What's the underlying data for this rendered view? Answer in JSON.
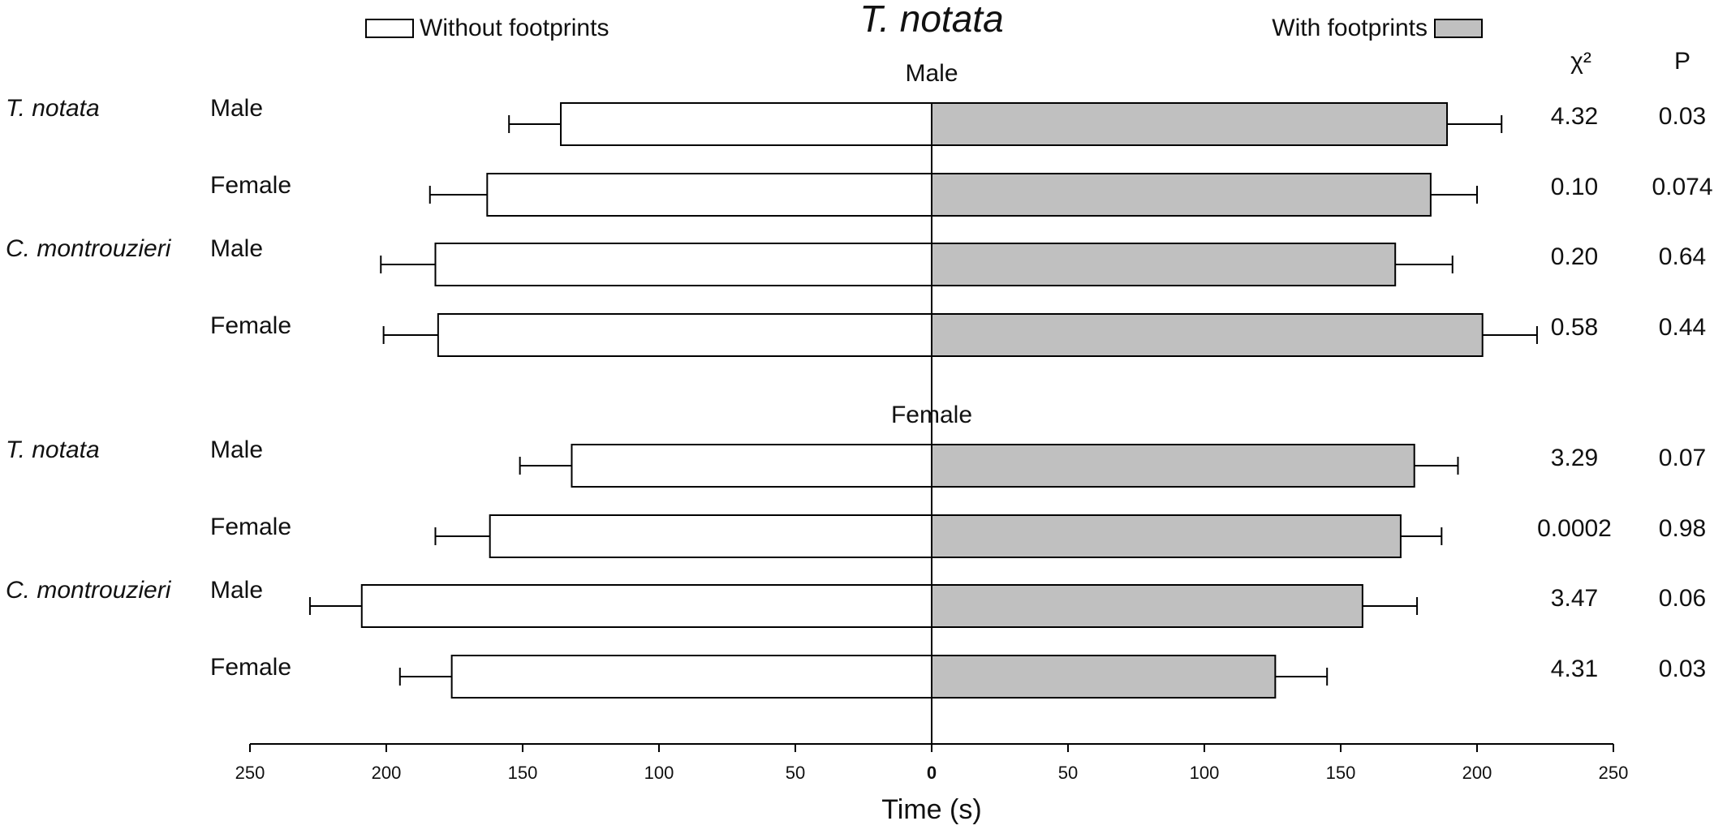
{
  "chart_data": {
    "type": "butterfly",
    "title": "T. notata",
    "xlabel": "Time (s)",
    "xlim": [
      0,
      250
    ],
    "xticks": [
      0,
      50,
      100,
      150,
      200,
      250
    ],
    "series": [
      {
        "name": "Without footprints",
        "color": "#ffffff",
        "values": [
          136,
          163,
          182,
          181,
          132,
          162,
          209,
          176
        ],
        "errors": [
          19,
          21,
          20,
          20,
          19,
          20,
          19,
          19
        ]
      },
      {
        "name": "With footprints",
        "color": "#c0c0c0",
        "values": [
          189,
          183,
          170,
          202,
          177,
          172,
          158,
          126
        ],
        "errors": [
          20,
          17,
          21,
          20,
          16,
          15,
          20,
          19
        ]
      }
    ],
    "stat_headers": [
      "χ²",
      "P"
    ],
    "groups": [
      {
        "title": "Male",
        "rows": [
          {
            "species": "T. notata",
            "sex": "Male",
            "chi2": "4.32",
            "p": "0.03"
          },
          {
            "species": null,
            "sex": "Female",
            "chi2": "0.10",
            "p": "0.074"
          },
          {
            "species": "C. montrouzieri",
            "sex": "Male",
            "chi2": "0.20",
            "p": "0.64"
          },
          {
            "species": null,
            "sex": "Female",
            "chi2": "0.58",
            "p": "0.44"
          }
        ]
      },
      {
        "title": "Female",
        "rows": [
          {
            "species": "T. notata",
            "sex": "Male",
            "chi2": "3.29",
            "p": "0.07"
          },
          {
            "species": null,
            "sex": "Female",
            "chi2": "0.0002",
            "p": "0.98"
          },
          {
            "species": "C. montrouzieri",
            "sex": "Male",
            "chi2": "3.47",
            "p": "0.06"
          },
          {
            "species": null,
            "sex": "Female",
            "chi2": "4.31",
            "p": "0.03"
          }
        ]
      }
    ]
  }
}
